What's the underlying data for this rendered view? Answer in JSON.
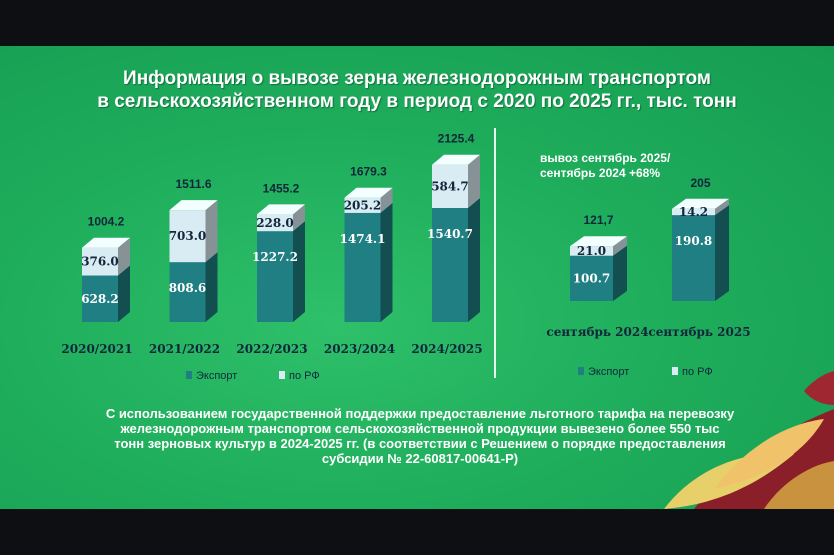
{
  "title_line1": "Информация о вывозе зерна железнодорожным транспортом",
  "title_line2": "в сельскохозяйственном году в период с 2020 по 2025 гг., тыс. тонн",
  "note_line1": "вывоз сентябрь 2025/",
  "note_line2": "сентябрь 2024 +68%",
  "footer_lines": [
    "С использованием государственной поддержки предоставление льготного тарифа на перевозку",
    "железнодорожным транспортом сельскохозяйственной продукции вывезено более 550 тыс",
    "тонн зерновых культур в 2024-2025 гг. (в соответствии с Решением о порядке предоставления",
    "субсидии № 22-60817-00641-Р)"
  ],
  "colors": {
    "export": "#1f7f82",
    "rf": "#d9ecf3",
    "background": "#1fae5c"
  },
  "chart_data": [
    {
      "type": "bar",
      "stacked": true,
      "categories": [
        "2020/2021",
        "2021/2022",
        "2022/2023",
        "2023/2024",
        "2024/2025"
      ],
      "series": [
        {
          "name": "Экспорт",
          "values": [
            628.2,
            808.6,
            1227.2,
            1474.1,
            1540.7
          ],
          "labels": [
            "628.2",
            "808.6",
            "1227.2",
            "1474.1",
            "1540.7"
          ]
        },
        {
          "name": "по РФ",
          "values": [
            376.0,
            703.0,
            228.0,
            205.2,
            584.7
          ],
          "labels": [
            "376.0",
            "703.0",
            "228.0",
            "205.2",
            "584.7"
          ]
        }
      ],
      "totals": [
        1004.2,
        1511.6,
        1455.2,
        1679.3,
        2125.4
      ],
      "total_labels": [
        "1004.2",
        "1511.6",
        "1455.2",
        "1679.3",
        "2125.4"
      ],
      "legend": [
        "Экспорт",
        "по РФ"
      ],
      "legend_position": "bottom"
    },
    {
      "type": "bar",
      "stacked": true,
      "categories": [
        "сентябрь 2024",
        "сентябрь 2025"
      ],
      "series": [
        {
          "name": "Экспорт",
          "values": [
            100.7,
            190.8
          ],
          "labels": [
            "100.7",
            "190.8"
          ]
        },
        {
          "name": "по РФ",
          "values": [
            21.0,
            14.2
          ],
          "labels": [
            "21.0",
            "14.2"
          ]
        }
      ],
      "totals": [
        121.7,
        205
      ],
      "total_labels": [
        "121,7",
        "205"
      ],
      "legend": [
        "Экспорт",
        "по РФ"
      ],
      "legend_position": "bottom"
    }
  ]
}
